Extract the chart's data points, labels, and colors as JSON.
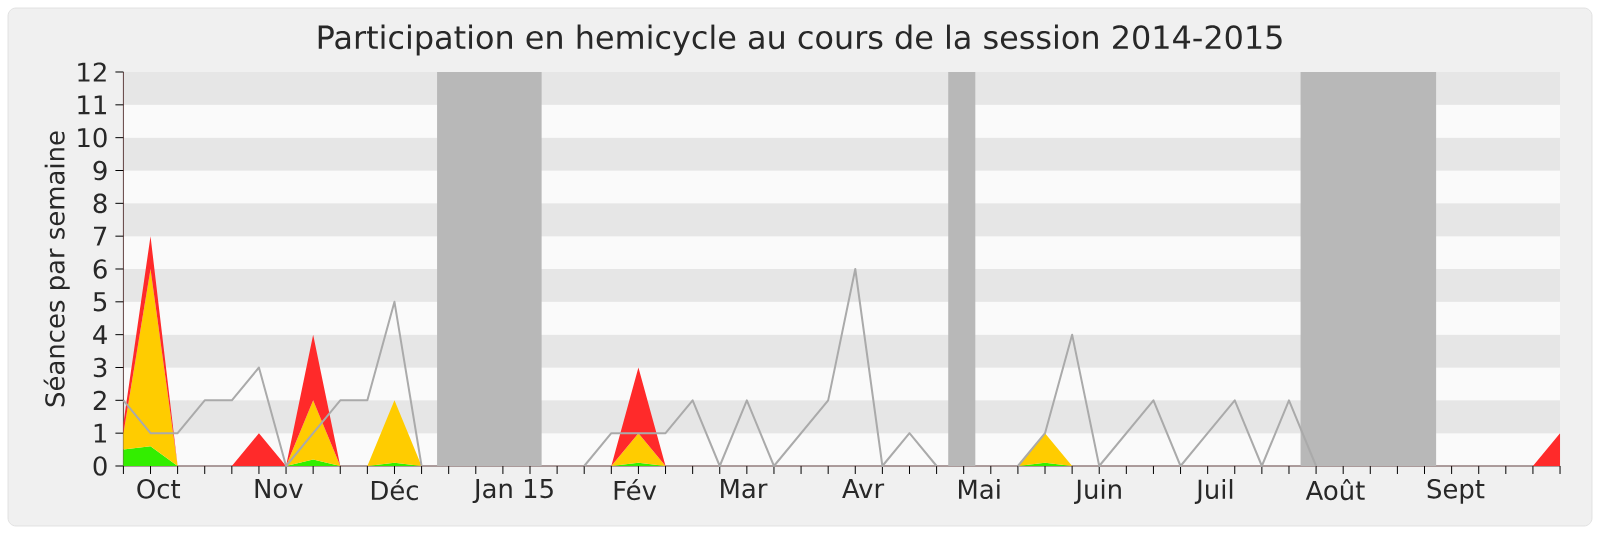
{
  "chart_data": {
    "type": "area",
    "title": "Participation en hemicycle au cours de la session 2014-2015",
    "ylabel": "Séances par semaine",
    "x": [
      "2014-09-22",
      "2014-09-29",
      "2014-10-06",
      "2014-10-13",
      "2014-10-20",
      "2014-10-27",
      "2014-11-03",
      "2014-11-10",
      "2014-11-17",
      "2014-11-24",
      "2014-12-01",
      "2014-12-08",
      "2014-12-15",
      "2014-12-22",
      "2014-12-29",
      "2015-01-05",
      "2015-01-12",
      "2015-01-19",
      "2015-01-26",
      "2015-02-02",
      "2015-02-09",
      "2015-02-16",
      "2015-02-23",
      "2015-03-02",
      "2015-03-09",
      "2015-03-16",
      "2015-03-23",
      "2015-03-30",
      "2015-04-06",
      "2015-04-13",
      "2015-04-20",
      "2015-04-27",
      "2015-05-04",
      "2015-05-11",
      "2015-05-18",
      "2015-05-25",
      "2015-06-01",
      "2015-06-08",
      "2015-06-15",
      "2015-06-22",
      "2015-06-29",
      "2015-07-06",
      "2015-07-13",
      "2015-07-20",
      "2015-07-27",
      "2015-08-03",
      "2015-08-10",
      "2015-08-17",
      "2015-08-24",
      "2015-08-31",
      "2015-09-07",
      "2015-09-14",
      "2015-09-21",
      "2015-09-28"
    ],
    "xlim": [
      "2014-09-22",
      "2015-09-28"
    ],
    "xticks": [
      {
        "value": "2014-10-01",
        "label": "Oct"
      },
      {
        "value": "2014-11-01",
        "label": "Nov"
      },
      {
        "value": "2014-12-01",
        "label": "Déc"
      },
      {
        "value": "2015-01-01",
        "label": "Jan 15"
      },
      {
        "value": "2015-02-01",
        "label": "Fév"
      },
      {
        "value": "2015-03-01",
        "label": "Mar"
      },
      {
        "value": "2015-04-01",
        "label": "Avr"
      },
      {
        "value": "2015-05-01",
        "label": "Mai"
      },
      {
        "value": "2015-06-01",
        "label": "Juin"
      },
      {
        "value": "2015-07-01",
        "label": "Juil"
      },
      {
        "value": "2015-08-01",
        "label": "Août"
      },
      {
        "value": "2015-09-01",
        "label": "Sept"
      }
    ],
    "stacked": true,
    "ylim": [
      0,
      12
    ],
    "yticks": [
      0,
      1,
      2,
      3,
      4,
      5,
      6,
      7,
      8,
      9,
      10,
      11,
      12
    ],
    "bands": [
      {
        "axis": "x",
        "from": "2014-12-12",
        "to": "2015-01-08",
        "color": "#b8b8b8"
      },
      {
        "axis": "x",
        "from": "2015-04-23",
        "to": "2015-04-30",
        "color": "#b8b8b8"
      },
      {
        "axis": "x",
        "from": "2015-07-23",
        "to": "2015-08-27",
        "color": "#b8b8b8"
      }
    ],
    "series": [
      {
        "color": "#33ee00",
        "values": [
          0.5,
          0.6,
          0,
          0,
          0,
          0,
          0,
          0.2,
          0,
          0,
          0.1,
          0,
          0,
          0,
          0,
          0,
          0,
          0,
          0,
          0.1,
          0,
          0,
          0,
          0,
          0,
          0,
          0,
          0,
          0,
          0,
          0,
          0,
          0,
          0,
          0.1,
          0,
          0,
          0,
          0,
          0,
          0,
          0,
          0,
          0,
          0,
          0,
          0,
          0,
          0,
          0,
          0,
          0,
          0,
          0
        ]
      },
      {
        "color": "#ffcc00",
        "values": [
          0.5,
          5.4,
          0,
          0,
          0,
          0,
          0,
          1.8,
          0,
          0,
          1.9,
          0,
          0,
          0,
          0,
          0,
          0,
          0,
          0,
          0.9,
          0,
          0,
          0,
          0,
          0,
          0,
          0,
          0,
          0,
          0,
          0,
          0,
          0,
          0,
          0.9,
          0,
          0,
          0,
          0,
          0,
          0,
          0,
          0,
          0,
          0,
          0,
          0,
          0,
          0,
          0,
          0,
          0,
          0,
          0
        ]
      },
      {
        "color": "#ff2a2a",
        "values": [
          0.3,
          1,
          0,
          0,
          0,
          1,
          0,
          2,
          0,
          0,
          0,
          0,
          0,
          0,
          0,
          0,
          0,
          0,
          0,
          2,
          0,
          0,
          0,
          0,
          0,
          0,
          0,
          0,
          0,
          0,
          0,
          0,
          0,
          0,
          0,
          0,
          0,
          0,
          0,
          0,
          0,
          0,
          0,
          0,
          0,
          0,
          0,
          0,
          0,
          0,
          0,
          0,
          0,
          1
        ]
      },
      {
        "type": "line",
        "color": "#aaaaaa",
        "values": [
          2,
          1,
          1,
          2,
          2,
          3,
          0,
          1,
          2,
          2,
          5,
          0,
          null,
          null,
          null,
          null,
          null,
          0,
          1,
          1,
          1,
          2,
          0,
          2,
          0,
          1,
          2,
          6,
          0,
          1,
          0,
          null,
          null,
          0,
          1,
          4,
          0,
          1,
          2,
          0,
          1,
          2,
          0,
          2,
          0,
          null,
          null,
          null,
          null,
          null,
          null,
          null,
          null,
          null
        ]
      }
    ]
  }
}
